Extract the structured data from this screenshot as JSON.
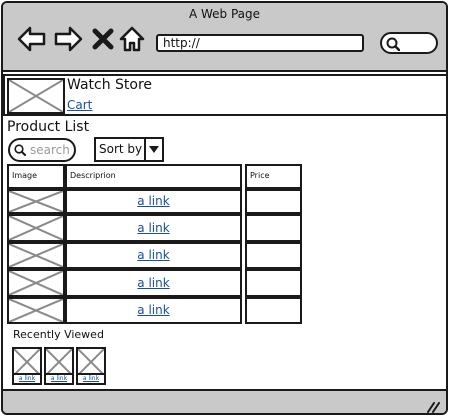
{
  "window": {
    "title": "A Web Page"
  },
  "toolbar": {
    "back_icon": "arrow-left-icon",
    "forward_icon": "arrow-right-icon",
    "close_icon": "x-icon",
    "home_icon": "home-icon",
    "address": "http://",
    "search_icon": "search-icon"
  },
  "header": {
    "store_name": "Watch Store",
    "cart_link": "Cart"
  },
  "product_list": {
    "title": "Product List",
    "search_placeholder": "search",
    "sort_label": "Sort by",
    "columns": [
      "Image",
      "Descriprion",
      "Price"
    ],
    "rows": [
      {
        "description": "a link",
        "price": ""
      },
      {
        "description": "a link",
        "price": ""
      },
      {
        "description": "a link",
        "price": ""
      },
      {
        "description": "a link",
        "price": ""
      },
      {
        "description": "a link",
        "price": ""
      }
    ]
  },
  "recently_viewed": {
    "title": "Recently Viewed",
    "items": [
      {
        "label": "a link"
      },
      {
        "label": "a link"
      },
      {
        "label": "a link"
      }
    ]
  },
  "colors": {
    "chrome": "#c9c9c9",
    "link": "#1a4fa0",
    "border": "#1a1a1a"
  }
}
